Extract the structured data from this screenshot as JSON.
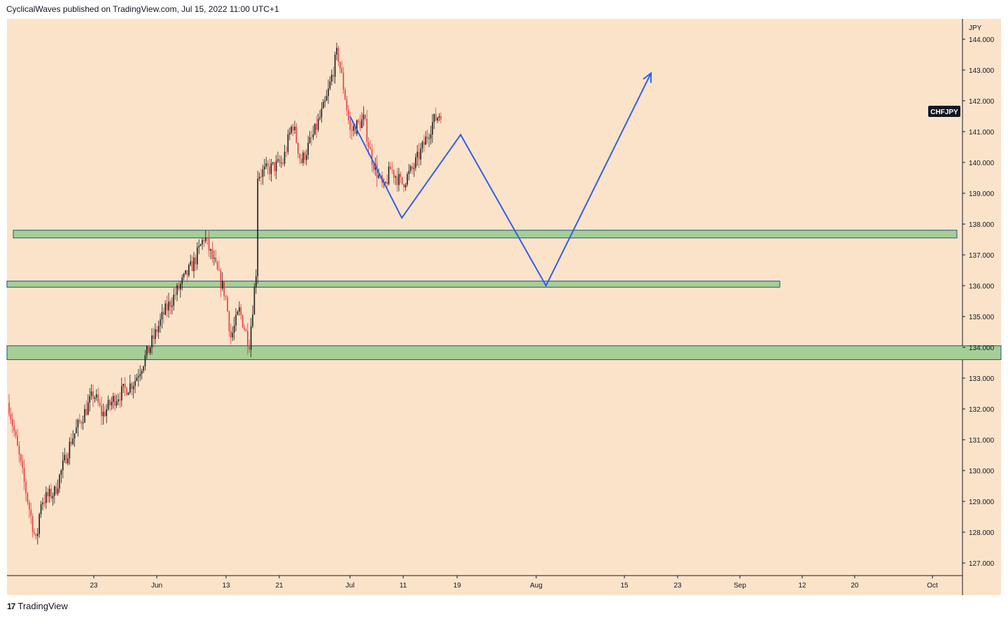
{
  "header": {
    "publish_line": "CyclicalWaves published on TradingView.com, Jul 15, 2022 11:00 UTC+1"
  },
  "footer": {
    "logo_mark": "17",
    "brand": "TradingView"
  },
  "colors": {
    "plot_bg": "#fbe3c9",
    "zone_fill": "#a5cf95",
    "zone_border": "#1f4f8f",
    "projection_line": "#2f5fe9",
    "candle_up": "#1b1b1b",
    "candle_down": "#e53b3b",
    "symbol_badge_bg": "#131722"
  },
  "chart_data": {
    "type": "candlestick",
    "symbol": "CHFJPY",
    "currency": "JPY",
    "y_ticks": [
      "144.000",
      "143.000",
      "142.000",
      "141.000",
      "140.000",
      "139.000",
      "138.000",
      "137.000",
      "136.000",
      "135.000",
      "134.000",
      "133.000",
      "132.000",
      "131.000",
      "130.000",
      "129.000",
      "128.000",
      "127.000"
    ],
    "x_ticks": [
      "23",
      "Jun",
      "13",
      "21",
      "Jul",
      "11",
      "19",
      "Aug",
      "15",
      "23",
      "Sep",
      "12",
      "20",
      "Oct"
    ],
    "ylim": [
      126.6,
      144.9
    ],
    "grid": false,
    "price_path": [
      [
        "start",
        132.2
      ],
      [
        "May 12",
        127.6
      ],
      [
        "May 13",
        129.0
      ],
      [
        "May 17",
        129.3
      ],
      [
        "May 19",
        131.0
      ],
      [
        "May 23",
        132.5
      ],
      [
        "May 24",
        131.8
      ],
      [
        "May 26",
        132.3
      ],
      [
        "May 30",
        132.9
      ],
      [
        "May 31",
        133.9
      ],
      [
        "Jun 2",
        135.1
      ],
      [
        "Jun 6",
        135.9
      ],
      [
        "Jun 8",
        136.8
      ],
      [
        "Jun 9",
        137.6
      ],
      [
        "Jun 13",
        135.7
      ],
      [
        "Jun 14",
        134.3
      ],
      [
        "Jun 15",
        135.2
      ],
      [
        "Jun 16",
        134.1
      ],
      [
        "Jun 17",
        137.0
      ],
      [
        "Jun 17",
        139.6
      ],
      [
        "Jun 22",
        140.0
      ],
      [
        "Jun 23",
        141.3
      ],
      [
        "Jun 24",
        140.0
      ],
      [
        "Jun 27",
        140.9
      ],
      [
        "Jun 28",
        142.0
      ],
      [
        "Jun 29",
        143.6
      ],
      [
        "Jun 30",
        142.0
      ],
      [
        "Jul 1",
        141.0
      ],
      [
        "Jul 4",
        141.4
      ],
      [
        "Jul 5",
        140.2
      ],
      [
        "Jul 7",
        139.1
      ],
      [
        "Jul 8",
        139.8
      ],
      [
        "Jul 11",
        139.3
      ],
      [
        "Jul 12",
        139.8
      ],
      [
        "Jul 13",
        140.5
      ],
      [
        "Jul 14",
        141.3
      ],
      [
        "Jul 15",
        141.7
      ]
    ],
    "zones": [
      {
        "from": 137.55,
        "to": 137.8,
        "extends": "right-edge"
      },
      {
        "from": 135.95,
        "to": 136.15,
        "extends": "to-mid-Sep"
      },
      {
        "from": 133.6,
        "to": 134.05,
        "extends": "right-edge"
      }
    ],
    "projection": [
      [
        "Jul 1",
        141.5
      ],
      [
        "Jul 11",
        138.2
      ],
      [
        "Jul 19",
        140.9
      ],
      [
        "Aug 1",
        136.0
      ],
      [
        "Aug 20",
        142.9
      ]
    ]
  }
}
